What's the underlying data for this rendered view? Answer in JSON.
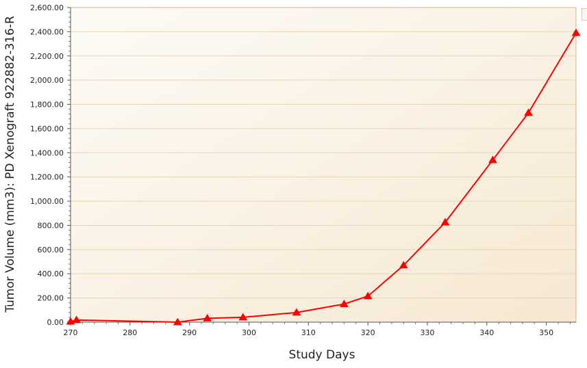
{
  "chart_data": {
    "type": "line",
    "title": "",
    "xlabel": "Study Days",
    "ylabel": "Tumor Volume (mm3): PD Xenograft 922882-316-R",
    "xlim": [
      270,
      355
    ],
    "ylim": [
      0,
      2600
    ],
    "x_ticks": [
      "270",
      "280",
      "290",
      "300",
      "310",
      "320",
      "330",
      "340",
      "350"
    ],
    "y_ticks": [
      "0.00",
      "200.00",
      "400.00",
      "600.00",
      "800.00",
      "1,000.00",
      "1,200.00",
      "1,400.00",
      "1,600.00",
      "1,800.00",
      "2,000.00",
      "2,200.00",
      "2,400.00",
      "2,600.00"
    ],
    "grid": true,
    "series": [
      {
        "color": "#ff0000",
        "marker": "triangle",
        "x": [
          270,
          271,
          288,
          293,
          299,
          308,
          316,
          320,
          326,
          333,
          341,
          347,
          355
        ],
        "y": [
          5,
          18,
          0,
          32,
          40,
          80,
          150,
          215,
          470,
          825,
          1340,
          1730,
          2390
        ]
      }
    ]
  },
  "colors": {
    "plot_bg_start": "#fdfbf6",
    "plot_bg_end": "#f6e8d2",
    "plot_border": "#c8b48c",
    "grid": "#e6d6b4",
    "series": "#ff0000"
  }
}
